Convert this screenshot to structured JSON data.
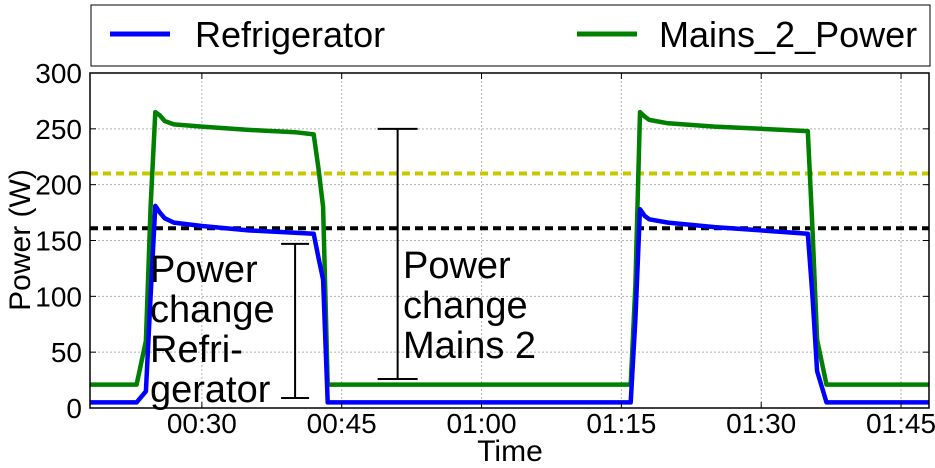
{
  "chart_data": {
    "type": "line",
    "title": "",
    "xlabel": "Time",
    "ylabel": "Power (W)",
    "xlim": [
      "00:18",
      "01:48"
    ],
    "ylim": [
      0,
      300
    ],
    "yticks": [
      0,
      50,
      100,
      150,
      200,
      250,
      300
    ],
    "xticks": [
      "00:30",
      "00:45",
      "01:00",
      "01:15",
      "01:30",
      "01:45"
    ],
    "grid": true,
    "legend_position": "top",
    "series": [
      {
        "name": "Refrigerator",
        "color": "#0000ff",
        "x": [
          "00:18",
          "00:22",
          "00:23",
          "00:24",
          "00:24:30",
          "00:25",
          "00:25:30",
          "00:26",
          "00:27",
          "00:30",
          "00:35",
          "00:40",
          "00:42",
          "00:42:30",
          "00:43",
          "00:43:30",
          "00:45",
          "01:00",
          "01:15",
          "01:16",
          "01:16:30",
          "01:17",
          "01:17:30",
          "01:18",
          "01:20",
          "01:25",
          "01:30",
          "01:35",
          "01:35:30",
          "01:36",
          "01:37",
          "01:45",
          "01:48"
        ],
        "values": [
          5,
          5,
          5,
          15,
          100,
          181,
          175,
          170,
          166,
          163,
          159,
          157,
          156,
          135,
          115,
          5,
          5,
          5,
          5,
          5,
          80,
          178,
          172,
          169,
          166,
          162,
          159,
          156,
          100,
          33,
          5,
          5,
          5
        ]
      },
      {
        "name": "Mains_2_Power",
        "color": "#008000",
        "x": [
          "00:18",
          "00:22",
          "00:23",
          "00:24",
          "00:24:30",
          "00:25",
          "00:25:30",
          "00:26",
          "00:27",
          "00:30",
          "00:35",
          "00:40",
          "00:42",
          "00:42:30",
          "00:43",
          "00:43:30",
          "00:45",
          "01:00",
          "01:15",
          "01:16",
          "01:16:30",
          "01:17",
          "01:17:30",
          "01:18",
          "01:20",
          "01:25",
          "01:30",
          "01:35",
          "01:35:30",
          "01:36",
          "01:37",
          "01:45",
          "01:48"
        ],
        "values": [
          21,
          21,
          21,
          60,
          180,
          265,
          262,
          257,
          254,
          252,
          249,
          247,
          245,
          215,
          180,
          21,
          21,
          21,
          21,
          21,
          110,
          265,
          261,
          258,
          255,
          252,
          250,
          248,
          160,
          61,
          21,
          21,
          21
        ]
      }
    ],
    "reference_lines": [
      {
        "y": 210,
        "color": "#c8c800",
        "style": "dashed"
      },
      {
        "y": 161,
        "color": "#000000",
        "style": "dashed"
      }
    ],
    "annotations": [
      {
        "lines": [
          "Power",
          "change",
          "Refri-",
          "gerator"
        ],
        "bar_x": "00:40",
        "bar_y": [
          9,
          147
        ]
      },
      {
        "lines": [
          "Power",
          "change",
          "Mains 2"
        ],
        "bar_x": "00:51",
        "bar_y": [
          26,
          250
        ]
      }
    ]
  }
}
